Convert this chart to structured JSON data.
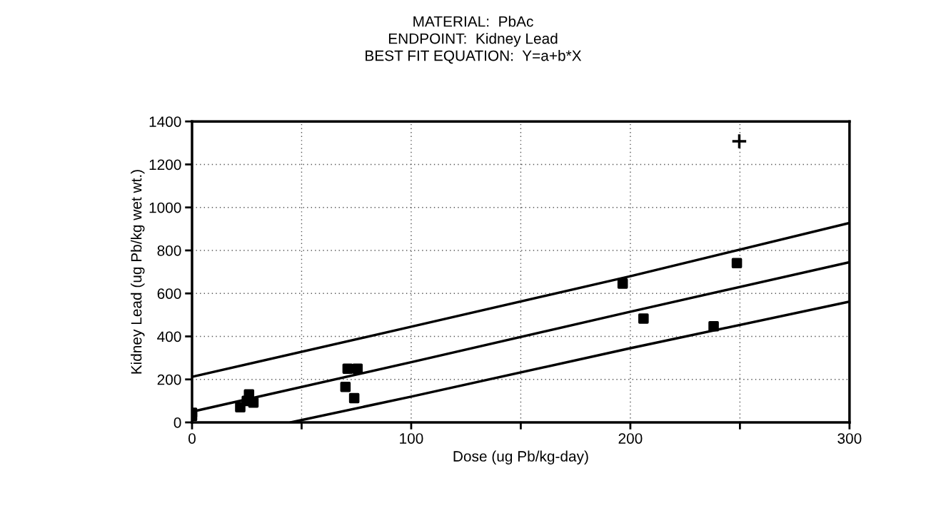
{
  "chart_data": {
    "type": "scatter",
    "title": "MATERIAL:  PbAc\nENDPOINT:  Kidney Lead\nBEST FIT EQUATION:  Y=a+b*X",
    "xlabel": "Dose (ug Pb/kg-day)",
    "ylabel": "Kidney Lead (ug Pb/kg wet wt.)",
    "xlim": [
      0,
      300
    ],
    "xticks": [
      0,
      {
        "value": 50,
        "label": null
      },
      100,
      {
        "value": 150,
        "label": null
      },
      200,
      {
        "value": 250,
        "label": null
      },
      300
    ],
    "ylim": [
      0,
      1400
    ],
    "yticks": [
      0,
      200,
      400,
      600,
      800,
      1000,
      1200,
      1400
    ],
    "grid": true,
    "legend": false,
    "series": [
      {
        "marker": "square",
        "color": "#000000",
        "x": [
          0,
          0,
          22,
          25,
          26,
          28,
          70,
          71,
          74,
          75.5,
          196.5,
          206,
          238,
          248.6
        ],
        "values": [
          45,
          30,
          71,
          100,
          130,
          92,
          165,
          250,
          113,
          250,
          646,
          483,
          447,
          741
        ]
      },
      {
        "marker": "cross",
        "color": "#000000",
        "x": [
          249.7
        ],
        "values": [
          1308
        ]
      },
      {
        "type": "line",
        "marker": "none",
        "color": "#000000",
        "x": [
          0,
          100,
          200,
          300
        ],
        "values": [
          212,
          445,
          680,
          928
        ]
      },
      {
        "type": "line",
        "marker": "none",
        "color": "#000000",
        "x": [
          0,
          100,
          200,
          300
        ],
        "values": [
          50,
          280,
          515,
          745
        ]
      },
      {
        "type": "line",
        "marker": "none",
        "color": "#000000",
        "x": [
          45,
          100,
          200,
          300
        ],
        "values": [
          0,
          120,
          345,
          562
        ]
      }
    ]
  }
}
